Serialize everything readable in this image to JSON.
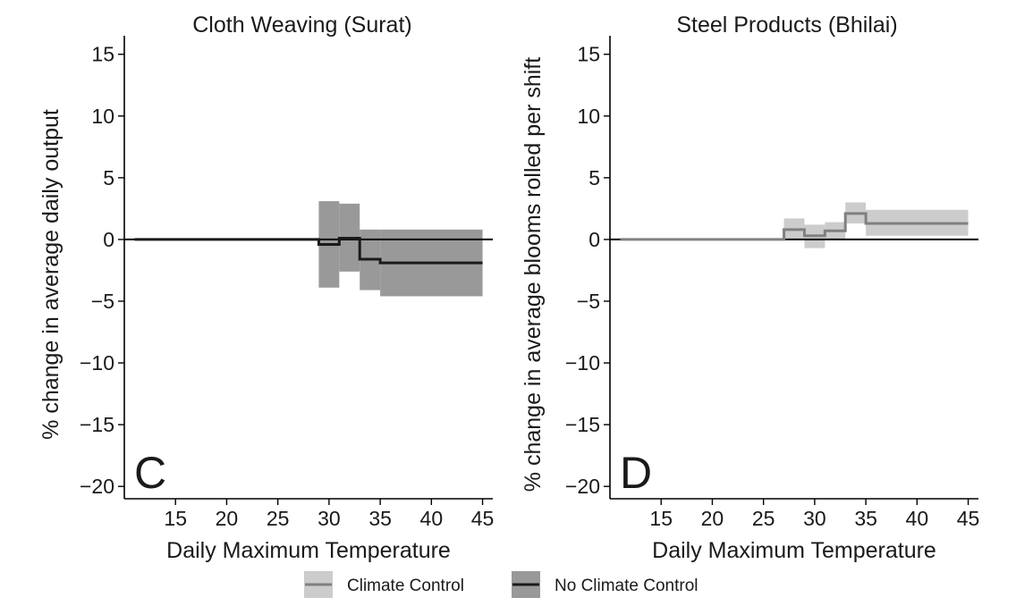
{
  "chart_data": [
    {
      "type": "step",
      "panel_letter": "C",
      "title": "Cloth Weaving (Surat)",
      "xlabel": "Daily Maximum Temperature",
      "ylabel": "% change in average daily output",
      "xlim": [
        10,
        46
      ],
      "ylim": [
        -21,
        16.5
      ],
      "xticks": [
        15,
        20,
        25,
        30,
        35,
        40,
        45
      ],
      "yticks": [
        -20,
        -15,
        -10,
        -5,
        0,
        5,
        10,
        15
      ],
      "ytick_labels": [
        "−20",
        "−15",
        "−10",
        "−5",
        "0",
        "5",
        "10",
        "15"
      ],
      "grid": false,
      "series": [
        {
          "name": "No Climate Control",
          "color": "#1a1a1a",
          "band_color": "#999999",
          "x": [
            11,
            29,
            31,
            33,
            35,
            45
          ],
          "y": [
            0,
            -0.4,
            0.1,
            -1.6,
            -1.9,
            -1.9
          ],
          "lower": [
            0,
            -3.9,
            -2.6,
            -4.1,
            -4.6,
            -4.6
          ],
          "upper": [
            0,
            3.1,
            2.9,
            0.8,
            0.8,
            0.8
          ]
        }
      ]
    },
    {
      "type": "step",
      "panel_letter": "D",
      "title": "Steel Products (Bhilai)",
      "xlabel": "Daily Maximum Temperature",
      "ylabel": "% change in average blooms rolled per shift",
      "xlim": [
        10,
        46
      ],
      "ylim": [
        -21,
        16.5
      ],
      "xticks": [
        15,
        20,
        25,
        30,
        35,
        40,
        45
      ],
      "yticks": [
        -20,
        -15,
        -10,
        -5,
        0,
        5,
        10,
        15
      ],
      "ytick_labels": [
        "−20",
        "−15",
        "−10",
        "−5",
        "0",
        "5",
        "10",
        "15"
      ],
      "grid": false,
      "series": [
        {
          "name": "Climate Control",
          "color": "#808080",
          "band_color": "#cccccc",
          "x": [
            11,
            27,
            29,
            31,
            33,
            35,
            45
          ],
          "y": [
            0,
            0.8,
            0.3,
            0.7,
            2.1,
            1.3,
            1.3
          ],
          "lower": [
            0,
            0,
            -0.7,
            0,
            1.3,
            0.3,
            0.3
          ],
          "upper": [
            0,
            1.7,
            1.2,
            1.4,
            3.0,
            2.4,
            2.4
          ]
        }
      ]
    }
  ],
  "legend": {
    "placement": "bottom",
    "items": [
      {
        "label": "Climate Control",
        "line_color": "#808080",
        "fill_color": "#cccccc"
      },
      {
        "label": "No Climate Control",
        "line_color": "#1a1a1a",
        "fill_color": "#999999"
      }
    ]
  }
}
